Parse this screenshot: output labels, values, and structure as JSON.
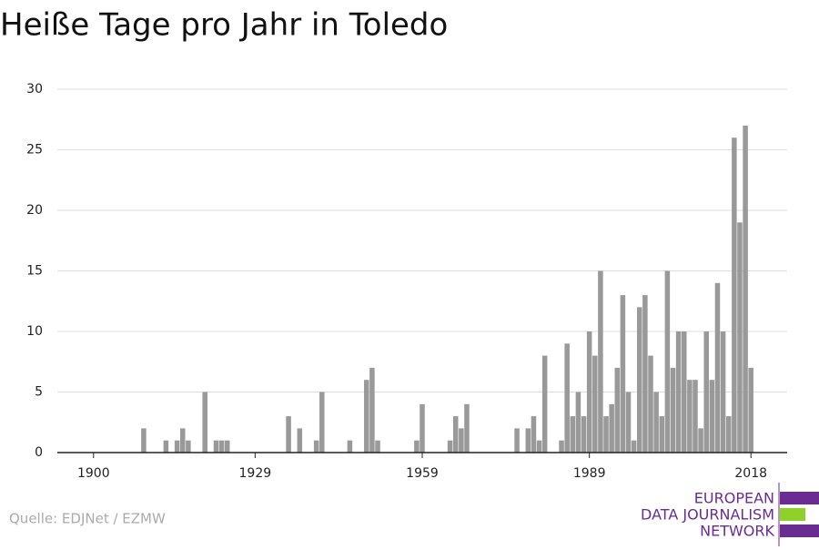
{
  "chart_data": {
    "type": "bar",
    "title": "Heiße Tage pro Jahr in Toledo",
    "x": [
      1909,
      1913,
      1915,
      1916,
      1917,
      1920,
      1922,
      1923,
      1924,
      1935,
      1937,
      1940,
      1941,
      1946,
      1949,
      1950,
      1951,
      1958,
      1959,
      1964,
      1965,
      1966,
      1967,
      1976,
      1978,
      1979,
      1980,
      1981,
      1984,
      1985,
      1986,
      1987,
      1988,
      1989,
      1990,
      1991,
      1992,
      1993,
      1994,
      1995,
      1996,
      1997,
      1998,
      1999,
      2000,
      2001,
      2002,
      2003,
      2004,
      2005,
      2006,
      2007,
      2008,
      2009,
      2010,
      2011,
      2012,
      2013,
      2014,
      2015,
      2016,
      2017,
      2018
    ],
    "values": [
      2,
      1,
      1,
      2,
      1,
      5,
      1,
      1,
      1,
      3,
      2,
      1,
      5,
      1,
      6,
      7,
      1,
      1,
      4,
      1,
      3,
      2,
      4,
      2,
      2,
      3,
      1,
      8,
      1,
      9,
      3,
      5,
      3,
      10,
      8,
      15,
      3,
      4,
      7,
      13,
      5,
      1,
      12,
      13,
      8,
      5,
      3,
      15,
      7,
      10,
      10,
      6,
      6,
      2,
      10,
      6,
      14,
      10,
      3,
      26,
      19,
      27,
      7
    ],
    "color": "#999999",
    "xlim": [
      1893.5,
      2024.5
    ],
    "xticks": [
      1900,
      1929,
      1959,
      1989,
      2018
    ],
    "ylim": [
      0,
      30
    ],
    "yticks": [
      0,
      5,
      10,
      15,
      20,
      25,
      30
    ],
    "grid": true,
    "source": "Quelle: EDJNet / EZMW"
  },
  "logo": {
    "lines": [
      "EUROPEAN",
      "DATA JOURNALISM",
      "NETWORK"
    ]
  }
}
